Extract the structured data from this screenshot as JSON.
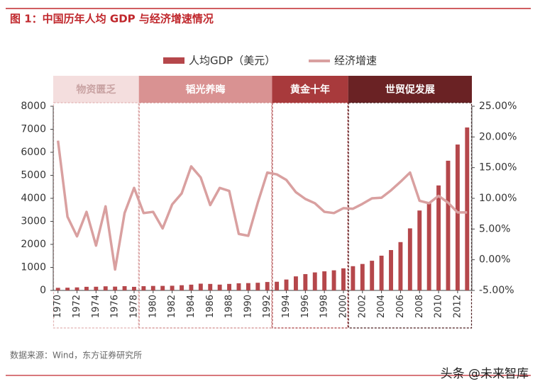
{
  "chart_data": {
    "type": "bar-line",
    "title": "图 1：中国历年人均 GDP 与经济增速情况",
    "source": "数据来源：Wind，东方证券研究所",
    "watermark": "头条 @未来智库",
    "x": [
      1970,
      1971,
      1972,
      1973,
      1974,
      1975,
      1976,
      1977,
      1978,
      1979,
      1980,
      1981,
      1982,
      1983,
      1984,
      1985,
      1986,
      1987,
      1988,
      1989,
      1990,
      1991,
      1992,
      1993,
      1994,
      1995,
      1996,
      1997,
      1998,
      1999,
      2000,
      2001,
      2002,
      2003,
      2004,
      2005,
      2006,
      2007,
      2008,
      2009,
      2010,
      2011,
      2012,
      2013
    ],
    "xlim": [
      1969.5,
      2013.5
    ],
    "xticks": [
      1970,
      1972,
      1974,
      1976,
      1978,
      1980,
      1982,
      1984,
      1986,
      1988,
      1990,
      1992,
      1994,
      1996,
      1998,
      2000,
      2002,
      2004,
      2006,
      2008,
      2010,
      2012
    ],
    "ylim": [
      0,
      8000
    ],
    "yticks": [
      0,
      1000,
      2000,
      3000,
      4000,
      5000,
      6000,
      7000,
      8000
    ],
    "y2lim": [
      -5,
      25
    ],
    "y2ticks": [
      {
        "value": -5,
        "label": "-5.00%"
      },
      {
        "value": 0,
        "label": "0.00%"
      },
      {
        "value": 5,
        "label": "5.00%"
      },
      {
        "value": 10,
        "label": "10.00%"
      },
      {
        "value": 15,
        "label": "15.00%"
      },
      {
        "value": 20,
        "label": "20.00%"
      },
      {
        "value": 25,
        "label": "25.00%"
      }
    ],
    "series": [
      {
        "name": "人均GDP（美元）",
        "type": "bar",
        "color": "#b5474b",
        "values": [
          113,
          118,
          131,
          157,
          160,
          178,
          165,
          185,
          156,
          184,
          195,
          197,
          203,
          225,
          250,
          294,
          282,
          252,
          283,
          310,
          318,
          333,
          366,
          377,
          473,
          610,
          709,
          782,
          829,
          873,
          959,
          1053,
          1149,
          1289,
          1509,
          1753,
          2099,
          2695,
          3471,
          3838,
          4560,
          5634,
          6337,
          7078
        ]
      },
      {
        "name": "经济增速",
        "type": "line",
        "axis": "y2",
        "color": "#d9a0a0",
        "values": [
          19.4,
          7.0,
          3.8,
          7.8,
          2.3,
          8.7,
          -1.6,
          7.6,
          11.7,
          7.6,
          7.8,
          5.1,
          9.0,
          10.8,
          15.2,
          13.4,
          8.9,
          11.7,
          11.2,
          4.2,
          3.9,
          9.3,
          14.2,
          13.9,
          13.0,
          11.0,
          9.9,
          9.2,
          7.8,
          7.6,
          8.4,
          8.3,
          9.1,
          10.0,
          10.1,
          11.3,
          12.7,
          14.2,
          9.6,
          9.2,
          10.4,
          9.3,
          7.7,
          7.7
        ]
      }
    ],
    "periods": [
      {
        "label": "物资匮乏",
        "from": 1970,
        "to": 1978,
        "color": "#f4dede",
        "text_color": "#c9a3a3",
        "border": "#e2b4b4"
      },
      {
        "label": "韬光养晦",
        "from": 1979,
        "to": 1992,
        "color": "#d99292",
        "text_color": "#ffffff",
        "border": "#d08a8a"
      },
      {
        "label": "黄金十年",
        "from": 1993,
        "to": 2000,
        "color": "#a83a3c",
        "text_color": "#ffffff",
        "border": "#a83a3c"
      },
      {
        "label": "世贸促发展",
        "from": 2001,
        "to": 2013,
        "color": "#6a2224",
        "text_color": "#ffffff",
        "border": "#4a1a1c"
      }
    ]
  }
}
